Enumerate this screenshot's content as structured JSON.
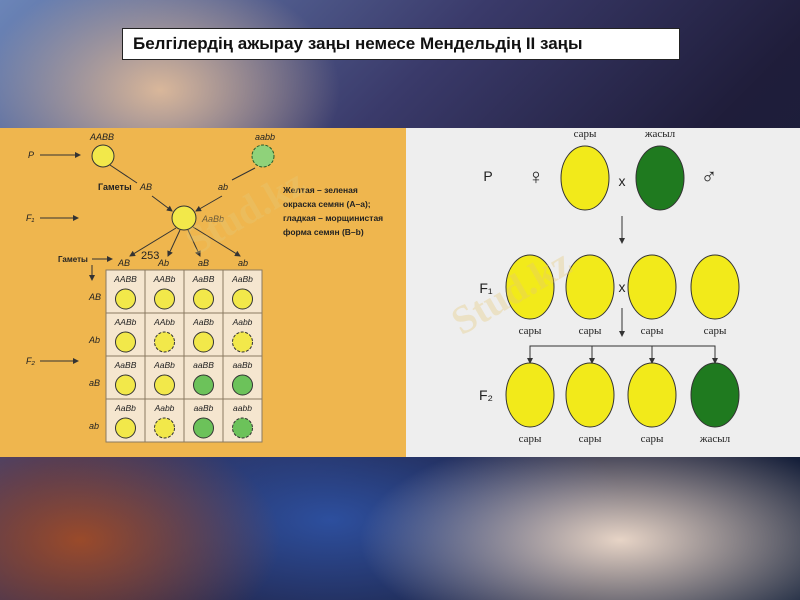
{
  "title": "Белгілердің ажырау заңы немесе Мендельдің II заңы",
  "watermark": "Stud.kz",
  "left": {
    "p_label": "P",
    "f1_label": "F₁",
    "f2_label": "F₂",
    "parent1": "AABB",
    "parent2": "aabb",
    "gametes_label": "Гаметы",
    "gamete_p1": "AB",
    "gamete_p2": "ab",
    "f1_genotype": "AaBb",
    "legend": [
      "Желтая – зеленая",
      "окраска семян (A–a);",
      "гладкая – морщинистая",
      "форма семян (B–b)"
    ],
    "f1_gametes": [
      "AB",
      "Ab",
      "aB",
      "ab"
    ],
    "page_number": "253",
    "grid": [
      [
        {
          "g": "AABB",
          "c": "yellow",
          "w": false
        },
        {
          "g": "AABb",
          "c": "yellow",
          "w": false
        },
        {
          "g": "AaBB",
          "c": "yellow",
          "w": false
        },
        {
          "g": "AaBb",
          "c": "yellow",
          "w": false
        }
      ],
      [
        {
          "g": "AABb",
          "c": "yellow",
          "w": false
        },
        {
          "g": "AAbb",
          "c": "yellow",
          "w": true
        },
        {
          "g": "AaBb",
          "c": "yellow",
          "w": false
        },
        {
          "g": "Aabb",
          "c": "yellow",
          "w": true
        }
      ],
      [
        {
          "g": "AaBB",
          "c": "yellow",
          "w": false
        },
        {
          "g": "AaBb",
          "c": "yellow",
          "w": false
        },
        {
          "g": "aaBB",
          "c": "green",
          "w": false
        },
        {
          "g": "aaBb",
          "c": "green",
          "w": false
        }
      ],
      [
        {
          "g": "AaBb",
          "c": "yellow",
          "w": false
        },
        {
          "g": "Aabb",
          "c": "yellow",
          "w": true
        },
        {
          "g": "aaBb",
          "c": "green",
          "w": false
        },
        {
          "g": "aabb",
          "c": "green",
          "w": true
        }
      ]
    ]
  },
  "right": {
    "p_label": "P",
    "f1_label": "F₁",
    "f2_label": "F₂",
    "cross": "x",
    "female": "♀",
    "male": "♂",
    "parents": [
      {
        "label": "сары",
        "color": "yellow"
      },
      {
        "label": "жасыл",
        "color": "darkgreen"
      }
    ],
    "f1": [
      {
        "label": "сары"
      },
      {
        "label": "сары"
      },
      {
        "label": "сары"
      },
      {
        "label": "сары"
      }
    ],
    "f2": [
      {
        "label": "сары",
        "color": "yellow"
      },
      {
        "label": "сары",
        "color": "yellow"
      },
      {
        "label": "сары",
        "color": "yellow"
      },
      {
        "label": "жасыл",
        "color": "darkgreen"
      }
    ]
  },
  "colors": {
    "yellow": "#f2ea1a",
    "darkgreen": "#1f7a1f",
    "lightgreen": "#6cc25a",
    "panel_left": "#efb64e",
    "panel_right": "#eeeeee"
  }
}
